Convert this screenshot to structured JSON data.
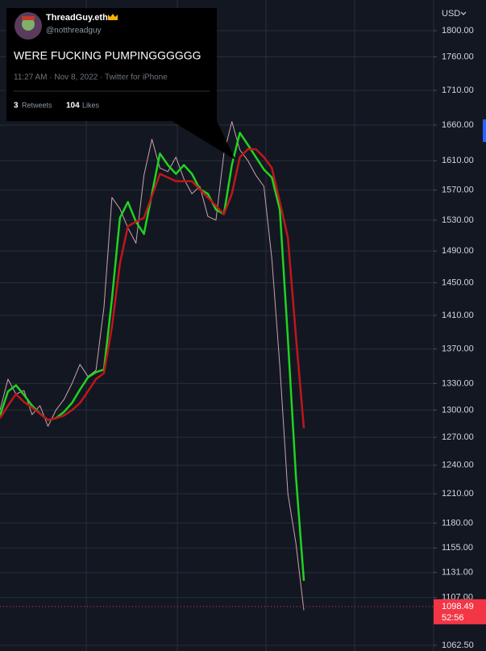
{
  "tweet": {
    "name": "ThreadGuy.eth",
    "handle": "@notthreadguy",
    "text": "WERE FUCKING PUMPINGGGGGG",
    "meta": "11:27 AM · Nov 8, 2022 · Twitter for iPhone",
    "retweets": 3,
    "retweets_label": "Retweets",
    "likes": 104,
    "likes_label": "Likes"
  },
  "chart_data": {
    "type": "line",
    "currency": "USD",
    "log_scale": true,
    "grid": true,
    "ylim": [
      1062.5,
      1800
    ],
    "yticks": [
      {
        "value": 1800,
        "label": "1800.00"
      },
      {
        "value": 1760,
        "label": "1760.00"
      },
      {
        "value": 1710,
        "label": "1710.00"
      },
      {
        "value": 1660,
        "label": "1660.00"
      },
      {
        "value": 1610,
        "label": "1610.00"
      },
      {
        "value": 1570,
        "label": "1570.00"
      },
      {
        "value": 1530,
        "label": "1530.00"
      },
      {
        "value": 1490,
        "label": "1490.00"
      },
      {
        "value": 1450,
        "label": "1450.00"
      },
      {
        "value": 1410,
        "label": "1410.00"
      },
      {
        "value": 1370,
        "label": "1370.00"
      },
      {
        "value": 1330,
        "label": "1330.00"
      },
      {
        "value": 1300,
        "label": "1300.00"
      },
      {
        "value": 1270,
        "label": "1270.00"
      },
      {
        "value": 1240,
        "label": "1240.00"
      },
      {
        "value": 1210,
        "label": "1210.00"
      },
      {
        "value": 1180,
        "label": "1180.00"
      },
      {
        "value": 1155,
        "label": "1155.00"
      },
      {
        "value": 1131,
        "label": "1131.00"
      },
      {
        "value": 1107,
        "label": "1107.00"
      },
      {
        "value": 1062.5,
        "label": "1062.50"
      }
    ],
    "series": [
      {
        "color": "#c9a3ab",
        "width": 1,
        "values": [
          1300,
          1335,
          1318,
          1322,
          1295,
          1305,
          1282,
          1300,
          1312,
          1330,
          1352,
          1338,
          1345,
          1420,
          1560,
          1545,
          1520,
          1500,
          1590,
          1640,
          1600,
          1595,
          1615,
          1585,
          1565,
          1575,
          1535,
          1530,
          1620,
          1665,
          1625,
          1610,
          1590,
          1575,
          1480,
          1350,
          1210,
          1160,
          1095
        ]
      },
      {
        "color": "#1fd41f",
        "width": 2.5,
        "values": [
          1294,
          1321,
          1328,
          1317,
          1305,
          1296,
          1289,
          1291,
          1298,
          1308,
          1323,
          1337,
          1343,
          1346,
          1430,
          1533,
          1554,
          1528,
          1512,
          1565,
          1620,
          1604,
          1592,
          1604,
          1592,
          1571,
          1565,
          1544,
          1538,
          1604,
          1649,
          1632,
          1615,
          1598,
          1587,
          1544,
          1382,
          1229,
          1123
        ]
      },
      {
        "color": "#c0161a",
        "width": 2.5,
        "values": [
          1291,
          1305,
          1318,
          1309,
          1303,
          1296,
          1289,
          1291,
          1294,
          1300,
          1308,
          1321,
          1335,
          1342,
          1396,
          1474,
          1522,
          1528,
          1533,
          1562,
          1592,
          1587,
          1582,
          1582,
          1582,
          1571,
          1560,
          1549,
          1538,
          1565,
          1615,
          1626,
          1626,
          1615,
          1600,
          1554,
          1507,
          1386,
          1280
        ]
      }
    ],
    "current_price": 1098.49,
    "current_price_color": "#f23645",
    "countdown": "52:56"
  }
}
